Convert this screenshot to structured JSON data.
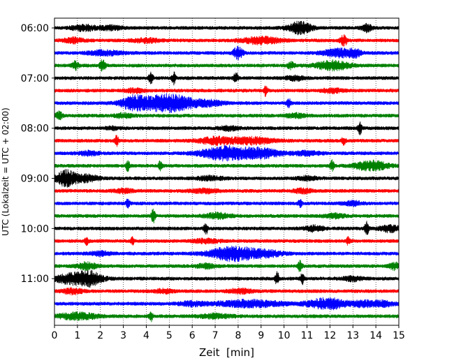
{
  "chart_data": {
    "type": "line",
    "title": "",
    "xlabel": "Zeit  [min]",
    "ylabel": "UTC (Lokalzeit = UTC + 02:00)",
    "xlim": [
      0,
      15
    ],
    "x_ticks": [
      0,
      1,
      2,
      3,
      4,
      5,
      6,
      7,
      8,
      9,
      10,
      11,
      12,
      13,
      14,
      15
    ],
    "trace_interval_min": 15,
    "y_tick_labels": [
      "06:00",
      "07:00",
      "08:00",
      "09:00",
      "10:00",
      "11:00"
    ],
    "grid": "vertical dotted lines at each minute",
    "legend": "none",
    "colors": [
      "#000000",
      "#ff0000",
      "#0000ff",
      "#008000"
    ],
    "series": [
      {
        "start": "06:00",
        "color": "#000000",
        "bursts": [
          [
            1.3,
            0.4,
            0.4
          ],
          [
            2.5,
            0.3,
            0.3
          ],
          [
            10.7,
            0.35,
            0.9
          ],
          [
            13.6,
            0.15,
            0.6
          ]
        ]
      },
      {
        "start": "06:15",
        "color": "#ff0000",
        "bursts": [
          [
            0.8,
            0.3,
            0.4
          ],
          [
            4.0,
            0.4,
            0.3
          ],
          [
            9.0,
            0.6,
            0.5
          ],
          [
            12.6,
            0.1,
            0.8
          ]
        ]
      },
      {
        "start": "06:30",
        "color": "#0000ff",
        "bursts": [
          [
            2.2,
            0.5,
            0.35
          ],
          [
            8.0,
            0.15,
            0.9
          ],
          [
            12.4,
            0.5,
            0.6
          ],
          [
            13.1,
            0.15,
            0.5
          ]
        ]
      },
      {
        "start": "06:45",
        "color": "#008000",
        "bursts": [
          [
            0.9,
            0.1,
            0.6
          ],
          [
            2.1,
            0.08,
            0.9
          ],
          [
            10.3,
            0.1,
            0.5
          ],
          [
            12.1,
            0.5,
            0.7
          ]
        ]
      },
      {
        "start": "07:00",
        "color": "#000000",
        "bursts": [
          [
            4.2,
            0.06,
            1.0
          ],
          [
            5.2,
            0.06,
            0.9
          ],
          [
            7.9,
            0.06,
            0.9
          ],
          [
            10.5,
            0.3,
            0.3
          ]
        ]
      },
      {
        "start": "07:15",
        "color": "#ff0000",
        "bursts": [
          [
            3.5,
            0.3,
            0.3
          ],
          [
            9.2,
            0.06,
            0.8
          ],
          [
            12.1,
            0.3,
            0.3
          ]
        ]
      },
      {
        "start": "07:30",
        "color": "#0000ff",
        "bursts": [
          [
            3.4,
            0.35,
            0.8
          ],
          [
            4.9,
            0.9,
            1.3
          ],
          [
            6.8,
            0.4,
            0.3
          ],
          [
            10.2,
            0.06,
            0.7
          ]
        ]
      },
      {
        "start": "07:45",
        "color": "#008000",
        "bursts": [
          [
            0.2,
            0.1,
            0.6
          ],
          [
            3.0,
            0.3,
            0.3
          ],
          [
            10.5,
            0.3,
            0.3
          ]
        ]
      },
      {
        "start": "08:00",
        "color": "#000000",
        "bursts": [
          [
            2.5,
            0.2,
            0.2
          ],
          [
            7.6,
            0.3,
            0.3
          ],
          [
            13.3,
            0.06,
            0.9
          ]
        ]
      },
      {
        "start": "08:15",
        "color": "#ff0000",
        "bursts": [
          [
            2.7,
            0.06,
            0.8
          ],
          [
            7.0,
            0.5,
            0.5
          ],
          [
            8.6,
            0.7,
            0.5
          ],
          [
            12.6,
            0.06,
            0.6
          ]
        ]
      },
      {
        "start": "08:30",
        "color": "#0000ff",
        "bursts": [
          [
            1.5,
            0.3,
            0.3
          ],
          [
            7.4,
            0.7,
            1.0
          ],
          [
            9.0,
            0.6,
            0.7
          ],
          [
            11.0,
            0.4,
            0.3
          ]
        ]
      },
      {
        "start": "08:45",
        "color": "#008000",
        "bursts": [
          [
            3.2,
            0.06,
            0.8
          ],
          [
            4.6,
            0.06,
            0.6
          ],
          [
            12.1,
            0.06,
            0.8
          ],
          [
            13.8,
            0.5,
            0.7
          ]
        ]
      },
      {
        "start": "09:00",
        "color": "#000000",
        "bursts": [
          [
            0.5,
            0.3,
            1.2
          ],
          [
            1.4,
            0.4,
            0.5
          ],
          [
            6.8,
            0.4,
            0.3
          ],
          [
            11.0,
            0.3,
            0.3
          ]
        ]
      },
      {
        "start": "09:15",
        "color": "#ff0000",
        "bursts": [
          [
            3.0,
            0.3,
            0.3
          ],
          [
            6.5,
            0.4,
            0.3
          ],
          [
            10.8,
            0.3,
            0.3
          ]
        ]
      },
      {
        "start": "09:30",
        "color": "#0000ff",
        "bursts": [
          [
            3.2,
            0.06,
            0.6
          ],
          [
            10.7,
            0.06,
            0.5
          ],
          [
            13.0,
            0.3,
            0.3
          ]
        ]
      },
      {
        "start": "09:45",
        "color": "#008000",
        "bursts": [
          [
            4.3,
            0.06,
            1.0
          ],
          [
            7.1,
            0.4,
            0.4
          ],
          [
            12.2,
            0.3,
            0.3
          ]
        ]
      },
      {
        "start": "10:00",
        "color": "#000000",
        "bursts": [
          [
            6.6,
            0.06,
            0.9
          ],
          [
            11.3,
            0.3,
            0.4
          ],
          [
            13.6,
            0.06,
            1.0
          ],
          [
            14.6,
            0.3,
            0.5
          ]
        ]
      },
      {
        "start": "10:15",
        "color": "#ff0000",
        "bursts": [
          [
            1.4,
            0.06,
            0.5
          ],
          [
            3.4,
            0.06,
            0.5
          ],
          [
            6.6,
            0.4,
            0.3
          ],
          [
            12.8,
            0.06,
            0.6
          ]
        ]
      },
      {
        "start": "10:30",
        "color": "#0000ff",
        "bursts": [
          [
            2.0,
            0.3,
            0.3
          ],
          [
            7.8,
            0.7,
            1.1
          ],
          [
            9.3,
            0.5,
            0.4
          ]
        ]
      },
      {
        "start": "10:45",
        "color": "#008000",
        "bursts": [
          [
            1.4,
            0.3,
            0.5
          ],
          [
            6.6,
            0.3,
            0.3
          ],
          [
            10.7,
            0.06,
            1.0
          ],
          [
            14.8,
            0.15,
            0.5
          ]
        ]
      },
      {
        "start": "11:00",
        "color": "#000000",
        "bursts": [
          [
            0.6,
            0.4,
            0.7
          ],
          [
            1.5,
            0.4,
            1.1
          ],
          [
            9.7,
            0.06,
            1.0
          ],
          [
            10.8,
            0.06,
            0.8
          ],
          [
            13.0,
            0.3,
            0.3
          ]
        ]
      },
      {
        "start": "11:15",
        "color": "#ff0000",
        "bursts": [
          [
            0.8,
            0.3,
            0.4
          ],
          [
            4.8,
            0.3,
            0.3
          ],
          [
            8.1,
            0.4,
            0.3
          ]
        ]
      },
      {
        "start": "11:30",
        "color": "#0000ff",
        "bursts": [
          [
            6.0,
            0.4,
            0.3
          ],
          [
            8.5,
            1.0,
            0.5
          ],
          [
            11.9,
            0.6,
            0.8
          ],
          [
            13.5,
            0.4,
            0.4
          ],
          [
            14.4,
            0.3,
            0.4
          ]
        ]
      },
      {
        "start": "11:45",
        "color": "#008000",
        "bursts": [
          [
            1.0,
            0.6,
            0.5
          ],
          [
            4.2,
            0.06,
            0.7
          ],
          [
            7.0,
            0.5,
            0.3
          ]
        ]
      }
    ]
  }
}
